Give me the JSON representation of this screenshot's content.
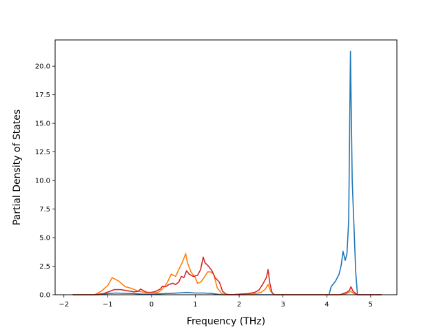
{
  "chart_data": {
    "type": "line",
    "title": "",
    "xlabel": "Frequency (THz)",
    "ylabel": "Partial Density of States",
    "xlim": [
      -2.2,
      5.6
    ],
    "ylim": [
      0,
      22.3
    ],
    "xticks": [
      -2,
      -1,
      0,
      1,
      2,
      3,
      4,
      5
    ],
    "xtick_labels": [
      "−2",
      "−1",
      "0",
      "1",
      "2",
      "3",
      "4",
      "5"
    ],
    "yticks": [
      0,
      2.5,
      5,
      7.5,
      10,
      12.5,
      15,
      17.5,
      20
    ],
    "ytick_labels": [
      "0.0",
      "2.5",
      "5.0",
      "7.5",
      "10.0",
      "12.5",
      "15.0",
      "17.5",
      "20.0"
    ],
    "grid": false,
    "legend": "none",
    "series": [
      {
        "color": "#1f77b4",
        "points": [
          [
            -1.8,
            0
          ],
          [
            -1.2,
            0
          ],
          [
            -1.0,
            0.1
          ],
          [
            -0.8,
            0.15
          ],
          [
            -0.6,
            0.12
          ],
          [
            -0.4,
            0.1
          ],
          [
            -0.2,
            0.05
          ],
          [
            0,
            0.05
          ],
          [
            0.3,
            0.1
          ],
          [
            0.6,
            0.15
          ],
          [
            0.8,
            0.2
          ],
          [
            1.0,
            0.15
          ],
          [
            1.2,
            0.15
          ],
          [
            1.4,
            0.1
          ],
          [
            1.5,
            0.05
          ],
          [
            1.6,
            0
          ],
          [
            2.0,
            0
          ],
          [
            2.5,
            0
          ],
          [
            3.0,
            0
          ],
          [
            3.5,
            0
          ],
          [
            4.05,
            0
          ],
          [
            4.1,
            0.7
          ],
          [
            4.2,
            1.2
          ],
          [
            4.28,
            1.8
          ],
          [
            4.33,
            2.6
          ],
          [
            4.37,
            3.8
          ],
          [
            4.42,
            3.0
          ],
          [
            4.46,
            3.6
          ],
          [
            4.5,
            6.5
          ],
          [
            4.54,
            21.3
          ],
          [
            4.58,
            10.0
          ],
          [
            4.62,
            6.0
          ],
          [
            4.66,
            2.0
          ],
          [
            4.7,
            0
          ],
          [
            5.0,
            0
          ],
          [
            5.25,
            0
          ]
        ]
      },
      {
        "color": "#ff7f0e",
        "points": [
          [
            -1.8,
            0
          ],
          [
            -1.3,
            0
          ],
          [
            -1.15,
            0.3
          ],
          [
            -1.0,
            0.8
          ],
          [
            -0.9,
            1.5
          ],
          [
            -0.75,
            1.2
          ],
          [
            -0.6,
            0.7
          ],
          [
            -0.45,
            0.55
          ],
          [
            -0.3,
            0.3
          ],
          [
            -0.15,
            0.2
          ],
          [
            0,
            0.2
          ],
          [
            0.15,
            0.2
          ],
          [
            0.25,
            0.5
          ],
          [
            0.35,
            1.0
          ],
          [
            0.45,
            1.8
          ],
          [
            0.55,
            1.6
          ],
          [
            0.62,
            2.2
          ],
          [
            0.7,
            2.8
          ],
          [
            0.78,
            3.6
          ],
          [
            0.82,
            2.8
          ],
          [
            0.9,
            2.0
          ],
          [
            1.0,
            1.5
          ],
          [
            1.05,
            1.0
          ],
          [
            1.12,
            1.1
          ],
          [
            1.2,
            1.5
          ],
          [
            1.28,
            2.0
          ],
          [
            1.35,
            2.0
          ],
          [
            1.42,
            1.8
          ],
          [
            1.5,
            0.6
          ],
          [
            1.6,
            0.1
          ],
          [
            1.7,
            0
          ],
          [
            2.0,
            0
          ],
          [
            2.3,
            0.05
          ],
          [
            2.5,
            0.2
          ],
          [
            2.6,
            0.5
          ],
          [
            2.66,
            0.9
          ],
          [
            2.72,
            0.3
          ],
          [
            2.8,
            0
          ],
          [
            3.5,
            0
          ],
          [
            4.0,
            0
          ],
          [
            4.3,
            0
          ],
          [
            4.45,
            0.1
          ],
          [
            4.55,
            0.3
          ],
          [
            4.62,
            0.1
          ],
          [
            4.7,
            0
          ],
          [
            5.0,
            0
          ],
          [
            5.25,
            0
          ]
        ]
      },
      {
        "color": "#d62728",
        "points": [
          [
            -1.8,
            0
          ],
          [
            -1.3,
            0
          ],
          [
            -1.1,
            0.1
          ],
          [
            -0.95,
            0.3
          ],
          [
            -0.85,
            0.45
          ],
          [
            -0.7,
            0.45
          ],
          [
            -0.55,
            0.35
          ],
          [
            -0.4,
            0.25
          ],
          [
            -0.3,
            0.3
          ],
          [
            -0.25,
            0.5
          ],
          [
            -0.18,
            0.35
          ],
          [
            -0.1,
            0.2
          ],
          [
            0,
            0.2
          ],
          [
            0.1,
            0.3
          ],
          [
            0.2,
            0.5
          ],
          [
            0.25,
            0.75
          ],
          [
            0.32,
            0.7
          ],
          [
            0.4,
            0.9
          ],
          [
            0.48,
            1.0
          ],
          [
            0.55,
            0.9
          ],
          [
            0.62,
            1.1
          ],
          [
            0.68,
            1.6
          ],
          [
            0.74,
            1.5
          ],
          [
            0.8,
            2.1
          ],
          [
            0.86,
            1.8
          ],
          [
            0.95,
            1.6
          ],
          [
            1.05,
            1.7
          ],
          [
            1.12,
            2.2
          ],
          [
            1.18,
            3.3
          ],
          [
            1.22,
            2.8
          ],
          [
            1.3,
            2.5
          ],
          [
            1.38,
            2.1
          ],
          [
            1.45,
            1.5
          ],
          [
            1.55,
            1.1
          ],
          [
            1.62,
            0.3
          ],
          [
            1.7,
            0.05
          ],
          [
            1.8,
            0
          ],
          [
            2.0,
            0.05
          ],
          [
            2.2,
            0.1
          ],
          [
            2.35,
            0.2
          ],
          [
            2.45,
            0.4
          ],
          [
            2.55,
            1.0
          ],
          [
            2.62,
            1.5
          ],
          [
            2.66,
            2.2
          ],
          [
            2.7,
            1.0
          ],
          [
            2.75,
            0.2
          ],
          [
            2.8,
            0
          ],
          [
            3.5,
            0
          ],
          [
            4.0,
            0
          ],
          [
            4.3,
            0
          ],
          [
            4.45,
            0.2
          ],
          [
            4.52,
            0.4
          ],
          [
            4.55,
            0.7
          ],
          [
            4.6,
            0.3
          ],
          [
            4.7,
            0
          ],
          [
            5.0,
            0
          ],
          [
            5.25,
            0
          ]
        ]
      }
    ]
  }
}
